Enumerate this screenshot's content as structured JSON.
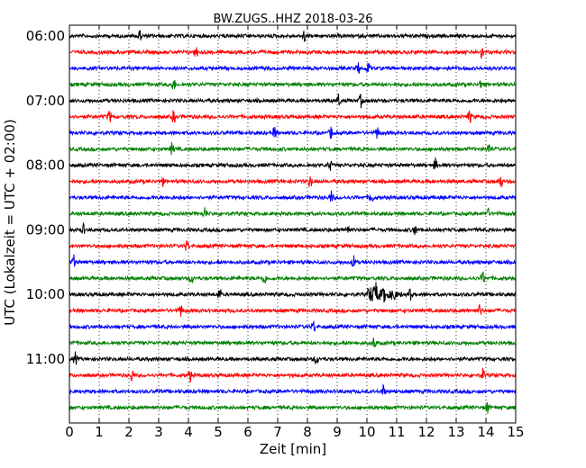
{
  "chart_data": {
    "type": "line",
    "title": "BW.ZUGS..HHZ 2018-03-26",
    "xlabel": "Zeit  [min]",
    "ylabel": "UTC (Lokalzeit = UTC + 02:00)",
    "xlim": [
      0,
      15
    ],
    "x_ticks": [
      "0",
      "1",
      "2",
      "3",
      "4",
      "5",
      "6",
      "7",
      "8",
      "9",
      "10",
      "11",
      "12",
      "13",
      "14",
      "15"
    ],
    "y_ticks": [
      "06:00",
      "07:00",
      "08:00",
      "09:00",
      "10:00",
      "11:00"
    ],
    "grid": true,
    "grid_style": "vertical dotted",
    "legend": "none",
    "color_cycle": [
      "#000000",
      "#ff0000",
      "#0000ff",
      "#008000"
    ],
    "traces": [
      {
        "start": "06:00",
        "events": [
          2.35,
          7.9
        ]
      },
      {
        "start": "06:15",
        "events": [
          4.25,
          13.85
        ]
      },
      {
        "start": "06:30",
        "events": [
          9.7,
          10.05
        ]
      },
      {
        "start": "06:45",
        "events": [
          3.5,
          13.85
        ]
      },
      {
        "start": "07:00",
        "events": [
          9.05,
          9.8
        ]
      },
      {
        "start": "07:15",
        "events": [
          1.35,
          3.5,
          13.45
        ]
      },
      {
        "start": "07:30",
        "events": [
          6.9,
          8.8,
          10.35
        ]
      },
      {
        "start": "07:45",
        "events": [
          3.45,
          14.1
        ]
      },
      {
        "start": "08:00",
        "events": [
          8.75,
          12.3
        ]
      },
      {
        "start": "08:15",
        "events": [
          3.1,
          8.1,
          14.5
        ]
      },
      {
        "start": "08:30",
        "events": [
          8.8,
          10.15
        ]
      },
      {
        "start": "08:45",
        "events": [
          4.55,
          14.05
        ]
      },
      {
        "start": "09:00",
        "events": [
          0.45,
          9.35,
          11.6
        ]
      },
      {
        "start": "09:15",
        "events": [
          3.95
        ]
      },
      {
        "start": "09:30",
        "events": [
          0.15,
          9.55
        ]
      },
      {
        "start": "09:45",
        "events": [
          4.1,
          6.55,
          13.9
        ]
      },
      {
        "start": "10:00",
        "events": [
          5.05,
          10.3,
          10.6,
          10.9,
          11.45
        ]
      },
      {
        "start": "10:15",
        "events": [
          3.75,
          13.8
        ]
      },
      {
        "start": "10:30",
        "events": [
          8.2
        ]
      },
      {
        "start": "10:45",
        "events": [
          10.25
        ]
      },
      {
        "start": "11:00",
        "events": [
          0.2,
          8.3
        ]
      },
      {
        "start": "11:15",
        "events": [
          2.1,
          4.05,
          13.9
        ]
      },
      {
        "start": "11:30",
        "events": [
          10.55
        ]
      },
      {
        "start": "11:45",
        "events": [
          14.05
        ]
      }
    ]
  }
}
